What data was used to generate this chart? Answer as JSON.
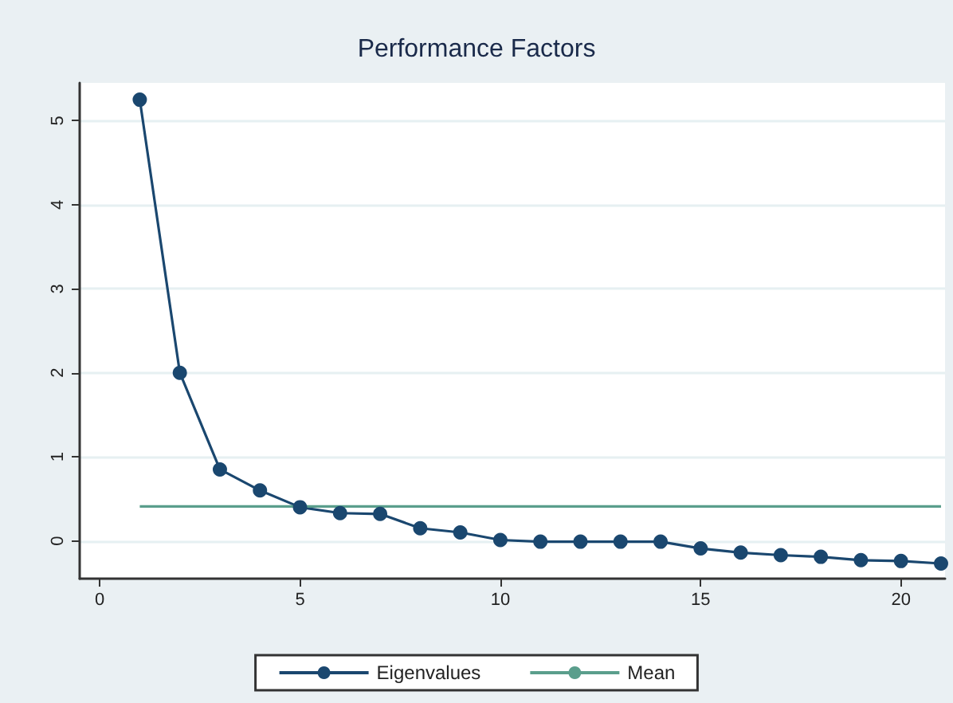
{
  "chart_data": {
    "type": "line",
    "title": "Performance Factors",
    "xlim": [
      -0.5,
      21.1
    ],
    "xticks": [
      0,
      5,
      10,
      15,
      20
    ],
    "ylim": [
      -0.45,
      5.45
    ],
    "yticks": [
      0,
      1,
      2,
      3,
      4,
      5
    ],
    "grid": "y",
    "legend": "bottom",
    "series": [
      {
        "name": "Eigenvalues",
        "color": "#1a476f",
        "marker": "circle",
        "x": [
          1,
          2,
          3,
          4,
          5,
          6,
          7,
          8,
          9,
          10,
          11,
          12,
          13,
          14,
          15,
          16,
          17,
          18,
          19,
          20,
          21
        ],
        "values": [
          5.25,
          2.0,
          0.85,
          0.6,
          0.4,
          0.33,
          0.32,
          0.15,
          0.1,
          0.01,
          -0.01,
          -0.01,
          -0.01,
          -0.01,
          -0.09,
          -0.14,
          -0.17,
          -0.19,
          -0.23,
          -0.24,
          -0.27
        ]
      },
      {
        "name": "Mean",
        "color": "#5a9e8c",
        "marker": "none",
        "x": [
          1,
          21
        ],
        "values": [
          0.41,
          0.41
        ]
      }
    ]
  }
}
